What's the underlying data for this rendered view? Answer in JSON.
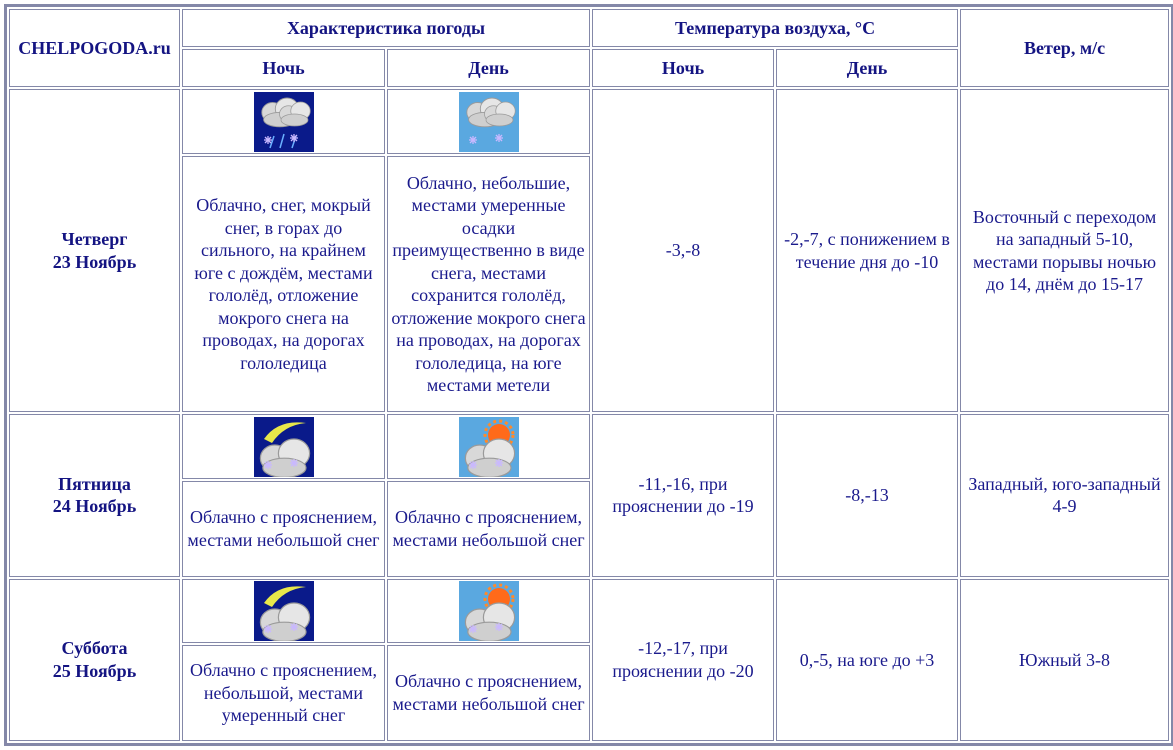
{
  "header": {
    "site": "CHELPOGODA.ru",
    "weather": "Характеристика погоды",
    "temperature": "Температура воздуха, °C",
    "wind": "Ветер, м/с",
    "night": "Ночь",
    "day": "День"
  },
  "colors": {
    "text": "#1a1a8c",
    "border": "#8488a8"
  },
  "rows": [
    {
      "weekday": "Четверг",
      "date": "23 Ноябрь",
      "night_icon": "night-cloud-sleet",
      "day_icon": "day-cloud-snow",
      "night_desc": "Облачно, снег, мокрый снег, в горах до сильного, на крайнем юге с дождём, местами гололёд, отложение мокрого снега на проводах, на дорогах гололедица",
      "day_desc": "Облачно, небольшие, местами умеренные осадки преимущественно в виде снега, местами сохранится гололёд, отложение мокрого снега на проводах, на дорогах гололедица, на юге местами метели",
      "temp_night": "-3,-8",
      "temp_day": "-2,-7, с понижением в течение дня до -10",
      "wind": "Восточный с переходом на западный 5-10, местами порывы ночью до 14, днём до 15-17"
    },
    {
      "weekday": "Пятница",
      "date": "24 Ноябрь",
      "night_icon": "night-moon-cloud-snow",
      "day_icon": "day-sun-cloud-snow",
      "night_desc": "Облачно с прояснением, местами небольшой снег",
      "day_desc": "Облачно с прояснением, местами небольшой снег",
      "temp_night": "-11,-16, при прояснении до -19",
      "temp_day": "-8,-13",
      "wind": "Западный, юго-западный 4-9"
    },
    {
      "weekday": "Суббота",
      "date": "25 Ноябрь",
      "night_icon": "night-moon-cloud-snow",
      "day_icon": "day-sun-cloud-snow",
      "night_desc": "Облачно с прояснением, небольшой, местами умеренный снег",
      "day_desc": "Облачно с прояснением, местами небольшой снег",
      "temp_night": "-12,-17, при прояснении до -20",
      "temp_day": "0,-5, на юге до +3",
      "wind": "Южный 3-8"
    }
  ]
}
